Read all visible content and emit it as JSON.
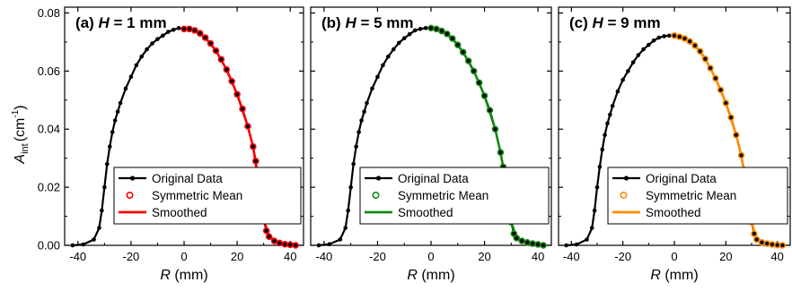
{
  "figure": {
    "ylabel_main": "A",
    "ylabel_sub": "int",
    "ylabel_unit": "(cm",
    "ylabel_sup": "-1",
    "ylabel_close": ")",
    "xlabel_var": "R",
    "xlabel_unit": " (mm)",
    "colors": {
      "original": "#000000",
      "smoothed_a": "#ff0000",
      "smoothed_b": "#138a13",
      "smoothed_c": "#ff8c00"
    }
  },
  "chart_data": [
    {
      "type": "line",
      "title_prefix": "(a) ",
      "title_var": "H",
      "title_suffix": " = 1 mm",
      "xlabel": "R (mm)",
      "ylabel": "A_int (cm^-1)",
      "xlim": [
        -45,
        45
      ],
      "ylim": [
        0,
        0.082
      ],
      "xticks": [
        -40,
        -20,
        0,
        20,
        40
      ],
      "yticks": [
        0.0,
        0.02,
        0.04,
        0.06,
        0.08
      ],
      "ytick_labels": [
        "0.00",
        "0.02",
        "0.04",
        "0.06",
        "0.08"
      ],
      "xtick_labels": [
        "-40",
        "-20",
        "0",
        "20",
        "40"
      ],
      "legend": [
        "Original Data",
        "Symmetric Mean",
        "Smoothed"
      ],
      "legend_placement": "bottom-right",
      "series": [
        {
          "name": "Original Data",
          "color": "#000000",
          "x": [
            -42,
            -38,
            -34,
            -32,
            -31,
            -30,
            -29,
            -28,
            -27,
            -26,
            -25,
            -24,
            -22,
            -20,
            -18,
            -16,
            -14,
            -12,
            -10,
            -8,
            -6,
            -4,
            -2,
            0,
            2,
            4,
            6,
            8,
            10,
            12,
            14,
            16,
            18,
            20,
            22,
            24,
            26,
            27,
            28,
            29,
            30,
            31,
            32,
            34,
            36,
            38,
            40,
            42
          ],
          "y": [
            0.0,
            0.0003,
            0.002,
            0.006,
            0.012,
            0.02,
            0.028,
            0.034,
            0.039,
            0.043,
            0.046,
            0.049,
            0.054,
            0.058,
            0.062,
            0.065,
            0.0675,
            0.0695,
            0.071,
            0.0722,
            0.0735,
            0.0742,
            0.0748,
            0.0745,
            0.0745,
            0.074,
            0.073,
            0.0715,
            0.0695,
            0.067,
            0.064,
            0.0605,
            0.0565,
            0.052,
            0.047,
            0.041,
            0.034,
            0.029,
            0.022,
            0.015,
            0.009,
            0.005,
            0.003,
            0.0015,
            0.0008,
            0.0004,
            0.0002,
            0.0
          ]
        },
        {
          "name": "Symmetric Mean",
          "color": "#ff0000",
          "x": [
            0,
            2,
            4,
            6,
            8,
            10,
            12,
            14,
            16,
            18,
            20,
            22,
            24,
            26,
            27,
            28,
            29,
            30,
            31,
            32,
            34,
            36,
            38,
            40,
            42
          ],
          "y": [
            0.0745,
            0.0745,
            0.074,
            0.073,
            0.0715,
            0.0695,
            0.067,
            0.064,
            0.0605,
            0.0565,
            0.052,
            0.047,
            0.041,
            0.034,
            0.029,
            0.022,
            0.015,
            0.009,
            0.005,
            0.003,
            0.0015,
            0.0008,
            0.0004,
            0.0002,
            0.0
          ]
        },
        {
          "name": "Smoothed",
          "color": "#ff0000",
          "x": [
            0,
            4,
            8,
            12,
            16,
            20,
            24,
            26,
            28,
            30,
            32,
            36,
            42
          ],
          "y": [
            0.0745,
            0.074,
            0.0715,
            0.067,
            0.0605,
            0.052,
            0.041,
            0.034,
            0.022,
            0.009,
            0.003,
            0.0008,
            0.0
          ]
        }
      ]
    },
    {
      "type": "line",
      "title_prefix": "(b) ",
      "title_var": "H",
      "title_suffix": " = 5 mm",
      "xlabel": "R (mm)",
      "ylabel": "A_int (cm^-1)",
      "xlim": [
        -45,
        45
      ],
      "ylim": [
        0,
        0.082
      ],
      "xticks": [
        -40,
        -20,
        0,
        20,
        40
      ],
      "xtick_labels": [
        "-40",
        "-20",
        "0",
        "20",
        "40"
      ],
      "legend": [
        "Original Data",
        "Symmetric Mean",
        "Smoothed"
      ],
      "legend_placement": "bottom-right",
      "series": [
        {
          "name": "Original Data",
          "color": "#000000",
          "x": [
            -42,
            -38,
            -34,
            -32,
            -31,
            -30,
            -29,
            -28,
            -27,
            -26,
            -25,
            -24,
            -22,
            -20,
            -18,
            -16,
            -14,
            -12,
            -10,
            -8,
            -6,
            -4,
            -2,
            0,
            2,
            4,
            6,
            8,
            10,
            12,
            14,
            16,
            18,
            20,
            22,
            24,
            26,
            27,
            28,
            29,
            30,
            31,
            32,
            34,
            36,
            38,
            40,
            42
          ],
          "y": [
            0.0,
            0.0004,
            0.002,
            0.006,
            0.012,
            0.02,
            0.028,
            0.034,
            0.039,
            0.043,
            0.046,
            0.049,
            0.054,
            0.058,
            0.062,
            0.065,
            0.0675,
            0.0697,
            0.0713,
            0.0727,
            0.074,
            0.0745,
            0.0748,
            0.0748,
            0.0745,
            0.0738,
            0.0728,
            0.0712,
            0.069,
            0.0665,
            0.0635,
            0.06,
            0.056,
            0.0515,
            0.0465,
            0.04,
            0.032,
            0.027,
            0.021,
            0.014,
            0.008,
            0.004,
            0.0025,
            0.0015,
            0.001,
            0.0006,
            0.0003,
            0.0
          ]
        },
        {
          "name": "Symmetric Mean",
          "color": "#138a13",
          "x": [
            0,
            2,
            4,
            6,
            8,
            10,
            12,
            14,
            16,
            18,
            20,
            22,
            24,
            26,
            27,
            28,
            29,
            30,
            31,
            32,
            34,
            36,
            38,
            40,
            42
          ],
          "y": [
            0.0748,
            0.0745,
            0.0738,
            0.0728,
            0.0712,
            0.069,
            0.0665,
            0.0635,
            0.06,
            0.056,
            0.0515,
            0.0465,
            0.04,
            0.032,
            0.027,
            0.021,
            0.014,
            0.008,
            0.004,
            0.0025,
            0.0015,
            0.001,
            0.0006,
            0.0003,
            0.0
          ]
        },
        {
          "name": "Smoothed",
          "color": "#138a13",
          "x": [
            0,
            4,
            8,
            12,
            16,
            20,
            24,
            26,
            28,
            30,
            32,
            36,
            42
          ],
          "y": [
            0.0748,
            0.0738,
            0.0712,
            0.0665,
            0.06,
            0.0515,
            0.04,
            0.032,
            0.021,
            0.008,
            0.0025,
            0.001,
            0.0
          ]
        }
      ]
    },
    {
      "type": "line",
      "title_prefix": "(c) ",
      "title_var": "H",
      "title_suffix": " = 9 mm",
      "xlabel": "R (mm)",
      "ylabel": "A_int (cm^-1)",
      "xlim": [
        -45,
        45
      ],
      "ylim": [
        0,
        0.082
      ],
      "xticks": [
        -40,
        -20,
        0,
        20,
        40
      ],
      "xtick_labels": [
        "-40",
        "-20",
        "0",
        "20",
        "40"
      ],
      "legend": [
        "Original Data",
        "Symmetric Mean",
        "Smoothed"
      ],
      "legend_placement": "bottom-right",
      "series": [
        {
          "name": "Original Data",
          "color": "#000000",
          "x": [
            -42,
            -38,
            -34,
            -32,
            -31,
            -30,
            -29,
            -28,
            -27,
            -26,
            -25,
            -24,
            -22,
            -20,
            -18,
            -16,
            -14,
            -12,
            -10,
            -8,
            -6,
            -4,
            -2,
            0,
            2,
            4,
            6,
            8,
            10,
            12,
            14,
            16,
            18,
            20,
            22,
            24,
            26,
            27,
            28,
            29,
            30,
            31,
            32,
            34,
            36,
            38,
            40,
            42
          ],
          "y": [
            0.0,
            0.0003,
            0.002,
            0.006,
            0.012,
            0.02,
            0.027,
            0.033,
            0.038,
            0.042,
            0.045,
            0.048,
            0.053,
            0.057,
            0.06,
            0.063,
            0.0655,
            0.0675,
            0.069,
            0.0705,
            0.0715,
            0.072,
            0.0722,
            0.0722,
            0.0718,
            0.0712,
            0.0702,
            0.0688,
            0.0668,
            0.0642,
            0.061,
            0.0575,
            0.0535,
            0.049,
            0.044,
            0.038,
            0.031,
            0.026,
            0.02,
            0.014,
            0.008,
            0.004,
            0.002,
            0.001,
            0.0006,
            0.0003,
            0.0001,
            0.0
          ]
        },
        {
          "name": "Symmetric Mean",
          "color": "#ff8c00",
          "x": [
            0,
            2,
            4,
            6,
            8,
            10,
            12,
            14,
            16,
            18,
            20,
            22,
            24,
            26,
            27,
            28,
            29,
            30,
            31,
            32,
            34,
            36,
            38,
            40,
            42
          ],
          "y": [
            0.0722,
            0.0718,
            0.0712,
            0.0702,
            0.0688,
            0.0668,
            0.0642,
            0.061,
            0.0575,
            0.0535,
            0.049,
            0.044,
            0.038,
            0.031,
            0.026,
            0.02,
            0.014,
            0.008,
            0.004,
            0.002,
            0.001,
            0.0006,
            0.0003,
            0.0001,
            0.0
          ]
        },
        {
          "name": "Smoothed",
          "color": "#ff8c00",
          "x": [
            0,
            4,
            8,
            12,
            16,
            20,
            24,
            26,
            28,
            30,
            32,
            36,
            42
          ],
          "y": [
            0.0722,
            0.0712,
            0.0688,
            0.0642,
            0.0575,
            0.049,
            0.038,
            0.031,
            0.02,
            0.008,
            0.002,
            0.0006,
            0.0
          ]
        }
      ]
    }
  ]
}
